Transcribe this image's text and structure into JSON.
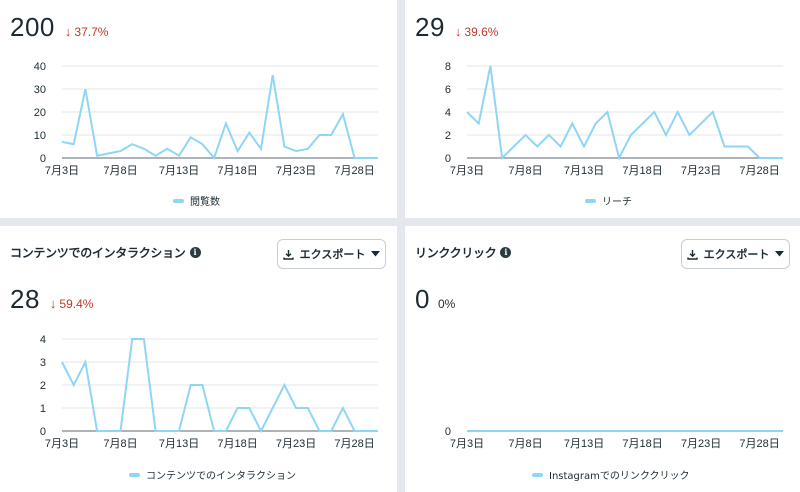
{
  "series_color": "#8fd6f4",
  "down_color": "#c0392b",
  "export_label": "エクスポート",
  "panels": [
    {
      "title": "",
      "value": "200",
      "change": "37.7%",
      "legend": "閲覧数",
      "has_header": false
    },
    {
      "title": "",
      "value": "29",
      "change": "39.6%",
      "legend": "リーチ",
      "has_header": false
    },
    {
      "title": "コンテンツでのインタラクション",
      "value": "28",
      "change": "59.4%",
      "legend": "コンテンツでのインタラクション",
      "has_header": true
    },
    {
      "title": "リンククリック",
      "value": "0",
      "change": "0%",
      "legend": "Instagramでのリンククリック",
      "has_header": true
    }
  ],
  "chart_data": [
    {
      "type": "line",
      "xticks": [
        "7月3日",
        "7月8日",
        "7月13日",
        "7月18日",
        "7月23日",
        "7月28日"
      ],
      "yticks": [
        0,
        10,
        20,
        30,
        40
      ],
      "ylim": [
        0,
        40
      ],
      "grid": true,
      "series": [
        {
          "name": "閲覧数",
          "values": [
            7,
            6,
            30,
            1,
            2,
            3,
            6,
            4,
            1,
            4,
            1,
            9,
            6,
            0,
            15,
            3,
            11,
            4,
            36,
            5,
            3,
            4,
            10,
            10,
            19,
            0,
            0,
            0
          ]
        }
      ]
    },
    {
      "type": "line",
      "xticks": [
        "7月3日",
        "7月8日",
        "7月13日",
        "7月18日",
        "7月23日",
        "7月28日"
      ],
      "yticks": [
        0,
        2,
        4,
        6,
        8
      ],
      "ylim": [
        0,
        8
      ],
      "grid": true,
      "series": [
        {
          "name": "リーチ",
          "values": [
            4,
            3,
            8,
            0,
            1,
            2,
            1,
            2,
            1,
            3,
            1,
            3,
            4,
            0,
            2,
            3,
            4,
            2,
            4,
            2,
            3,
            4,
            1,
            1,
            1,
            0,
            0,
            0
          ]
        }
      ]
    },
    {
      "type": "line",
      "xticks": [
        "7月3日",
        "7月8日",
        "7月13日",
        "7月18日",
        "7月23日",
        "7月28日"
      ],
      "yticks": [
        0,
        1,
        2,
        3,
        4
      ],
      "ylim": [
        0,
        4
      ],
      "grid": true,
      "series": [
        {
          "name": "コンテンツでのインタラクション",
          "values": [
            3,
            2,
            3,
            0,
            0,
            0,
            4,
            4,
            0,
            0,
            0,
            2,
            2,
            0,
            0,
            1,
            1,
            0,
            1,
            2,
            1,
            1,
            0,
            0,
            1,
            0,
            0,
            0
          ]
        }
      ]
    },
    {
      "type": "line",
      "xticks": [
        "7月3日",
        "7月8日",
        "7月13日",
        "7月18日",
        "7月23日",
        "7月28日"
      ],
      "yticks": [
        0
      ],
      "ylim": [
        0,
        1
      ],
      "grid": true,
      "series": [
        {
          "name": "Instagramでのリンククリック",
          "values": [
            0,
            0,
            0,
            0,
            0,
            0,
            0,
            0,
            0,
            0,
            0,
            0,
            0,
            0,
            0,
            0,
            0,
            0,
            0,
            0,
            0,
            0,
            0,
            0,
            0,
            0,
            0,
            0
          ]
        }
      ]
    }
  ]
}
